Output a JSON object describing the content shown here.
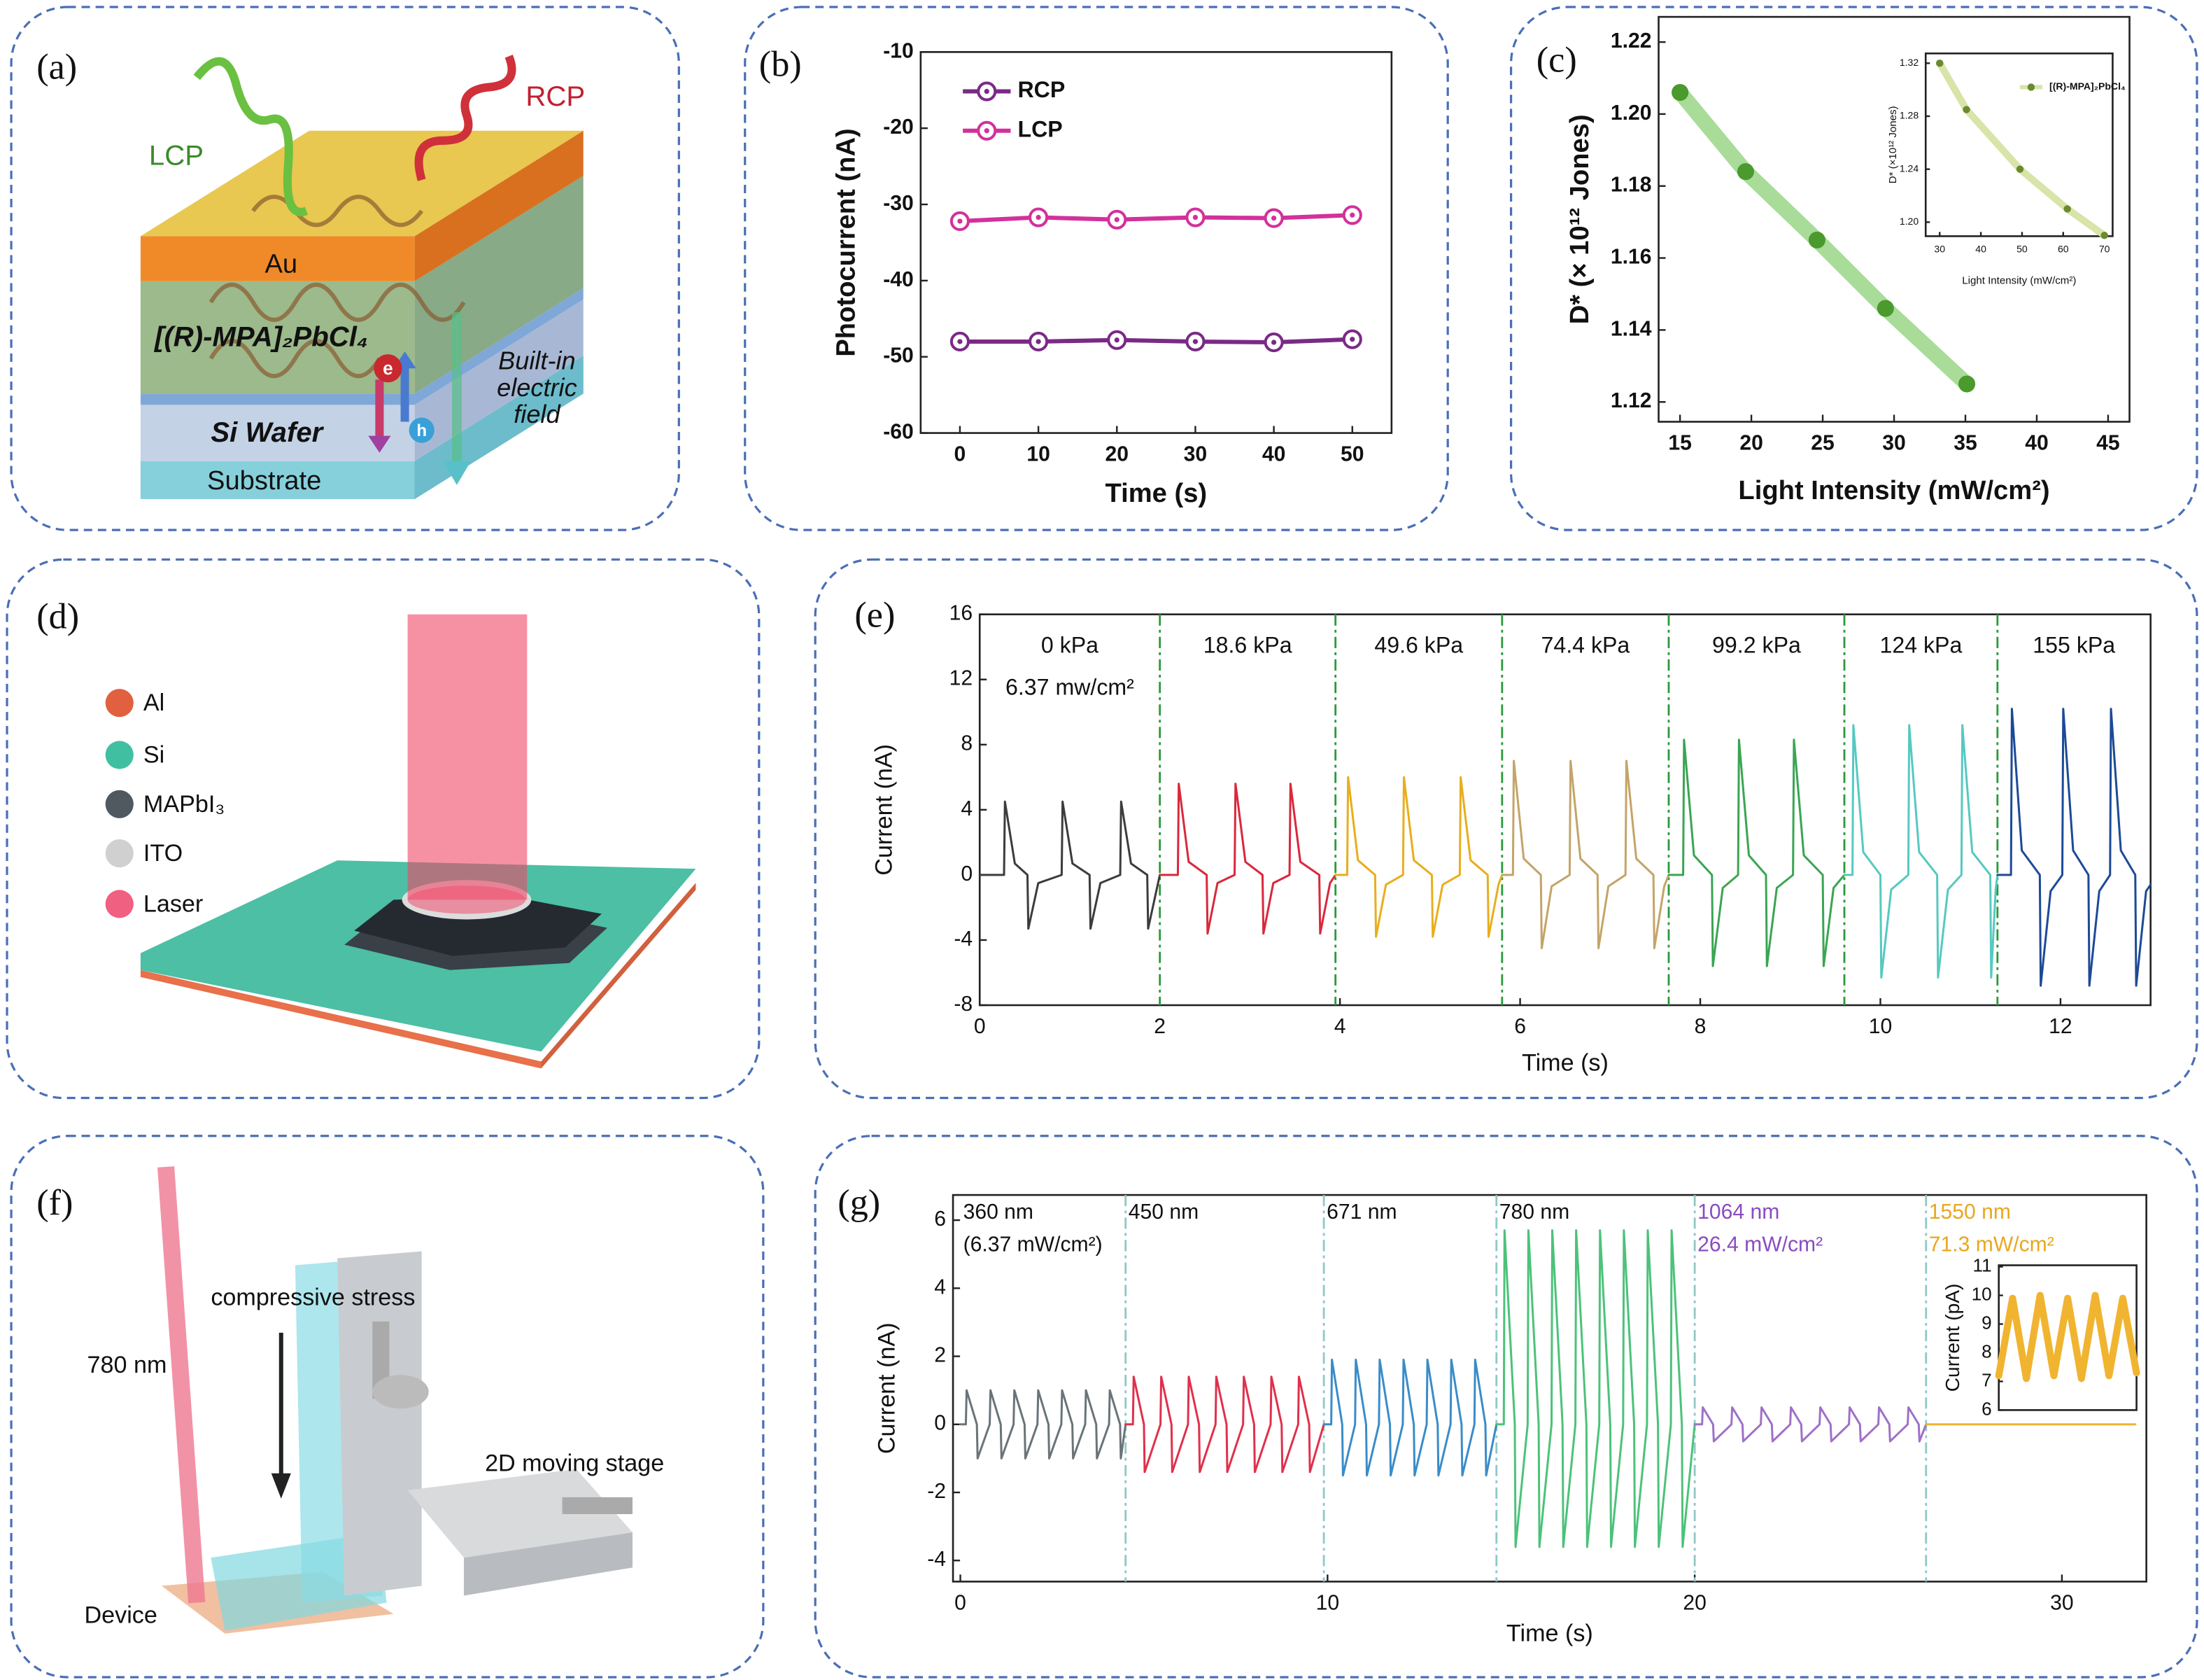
{
  "chart_data": [
    {
      "type": "line",
      "panel_label": "(b)",
      "xlabel": "Time (s)",
      "ylabel": "Photocurrent (nA)",
      "x": [
        0,
        10,
        20,
        30,
        40,
        50
      ],
      "xlim": [
        -5,
        55
      ],
      "xticks": [
        0,
        10,
        20,
        30,
        40,
        50
      ],
      "ylim": [
        -60,
        -10
      ],
      "yticks": [
        -10,
        -20,
        -30,
        -40,
        -50,
        -60
      ],
      "marker": "open-circle",
      "legend": "upper left",
      "series": [
        {
          "name": "RCP",
          "color": "#7a2a86",
          "values": [
            -48,
            -48,
            -47.8,
            -48,
            -48.1,
            -47.7
          ]
        },
        {
          "name": "LCP",
          "color": "#d2319b",
          "values": [
            -32.2,
            -31.7,
            -32,
            -31.7,
            -31.8,
            -31.4
          ]
        }
      ]
    },
    {
      "type": "line",
      "panel_label": "(c)",
      "xlabel": "Light Intensity (mW/cm²)",
      "ylabel": "D* (× 10¹² Jones)",
      "x": [
        15,
        19.6,
        24.6,
        29.4,
        35.1
      ],
      "xlim": [
        13.5,
        46.5
      ],
      "xticks": [
        15,
        20,
        25,
        30,
        35,
        40,
        45
      ],
      "ylim": [
        1.1145,
        1.227
      ],
      "yticks": [
        1.12,
        1.14,
        1.16,
        1.18,
        {
          "value": 1.2,
          "label": "1.20"
        },
        1.22
      ],
      "marker": "dot",
      "series": [
        {
          "color": "#4a9a2e",
          "band_color": "#a8dc98",
          "values": [
            1.206,
            1.184,
            1.165,
            1.146,
            1.125
          ]
        }
      ]
    },
    {
      "type": "line",
      "xlabel": "Light Intensity (mW/cm²)",
      "ylabel": "D* (×10¹² Jones)",
      "x": [
        30,
        36.5,
        49.5,
        61,
        70
      ],
      "xlim": [
        26.6,
        72
      ],
      "xticks": [
        30,
        40,
        50,
        60,
        70
      ],
      "ylim": [
        1.1894,
        1.3274
      ],
      "yticks": [
        {
          "value": 1.2,
          "label": "1.20"
        },
        1.24,
        1.28,
        1.32
      ],
      "marker": "dot",
      "legend": "upper right",
      "series": [
        {
          "name": "[(R)-MPA]₂PbCl₄",
          "color": "#6a8a2e",
          "band_color": "#d8e4a8",
          "values": [
            1.32,
            1.285,
            1.24,
            1.21,
            1.19
          ]
        }
      ]
    },
    {
      "type": "line",
      "panel_label": "(e)",
      "xlabel": "Time (s)",
      "ylabel": "Current (nA)",
      "xlim": [
        0,
        13
      ],
      "xticks": [
        0,
        2,
        4,
        6,
        8,
        10,
        12
      ],
      "ylim": [
        -8,
        16
      ],
      "yticks": [
        -8,
        -4,
        0,
        4,
        8,
        12,
        16
      ],
      "dividers": [
        2.0,
        3.95,
        5.8,
        7.65,
        9.6,
        11.3
      ],
      "divider_color": "#2a9a3a",
      "segment_labels": "middle",
      "series": [
        {
          "name": "0 kPa",
          "annotation": "6.37 mw/cm²",
          "color": "#3c3c3c",
          "x": [
            0,
            0.27,
            0.28,
            0.39,
            0.53,
            0.54,
            0.65,
            0.91,
            0.92,
            1.03,
            1.22,
            1.23,
            1.34,
            1.56,
            1.57,
            1.68,
            1.86,
            1.87,
            1.98,
            2.0
          ],
          "values": [
            0,
            0,
            4.5,
            0.7,
            0,
            -3.3,
            -0.5,
            0,
            4.5,
            0.7,
            0,
            -3.3,
            -0.5,
            0,
            4.5,
            0.7,
            0,
            -3.3,
            -0.5,
            0
          ]
        },
        {
          "name": "18.6 kPa",
          "color": "#d9283c",
          "x": [
            2.0,
            2.2,
            2.21,
            2.32,
            2.52,
            2.53,
            2.64,
            2.83,
            2.84,
            2.95,
            3.14,
            3.15,
            3.26,
            3.44,
            3.45,
            3.56,
            3.77,
            3.78,
            3.89,
            3.95
          ],
          "values": [
            0,
            0,
            5.6,
            0.8,
            0,
            -3.6,
            -0.5,
            0,
            5.6,
            0.8,
            0,
            -3.6,
            -0.5,
            0,
            5.6,
            0.8,
            0,
            -3.6,
            -0.5,
            0
          ]
        },
        {
          "name": "49.6 kPa",
          "color": "#e8ae1c",
          "x": [
            3.95,
            4.08,
            4.09,
            4.2,
            4.39,
            4.4,
            4.51,
            4.7,
            4.71,
            4.82,
            5.02,
            5.03,
            5.14,
            5.33,
            5.34,
            5.45,
            5.64,
            5.65,
            5.76,
            5.8
          ],
          "values": [
            0,
            0,
            6,
            0.9,
            0,
            -3.8,
            -0.6,
            0,
            6,
            0.9,
            0,
            -3.8,
            -0.6,
            0,
            6,
            0.9,
            0,
            -3.8,
            -0.6,
            0
          ]
        },
        {
          "name": "74.4 kPa",
          "color": "#c4a468",
          "x": [
            5.8,
            5.92,
            5.93,
            6.04,
            6.23,
            6.24,
            6.35,
            6.55,
            6.56,
            6.67,
            6.86,
            6.87,
            6.98,
            7.17,
            7.18,
            7.29,
            7.48,
            7.49,
            7.6,
            7.65
          ],
          "values": [
            0,
            0,
            7,
            1.0,
            0,
            -4.5,
            -0.7,
            0,
            7,
            1.0,
            0,
            -4.5,
            -0.7,
            0,
            7,
            1.0,
            0,
            -4.5,
            -0.7,
            0
          ]
        },
        {
          "name": "99.2 kPa",
          "color": "#3aa552",
          "x": [
            7.65,
            7.81,
            7.82,
            7.93,
            8.13,
            8.14,
            8.25,
            8.42,
            8.43,
            8.54,
            8.73,
            8.74,
            8.85,
            9.03,
            9.04,
            9.15,
            9.36,
            9.37,
            9.48,
            9.6
          ],
          "values": [
            0,
            0,
            8.3,
            1.2,
            0,
            -5.6,
            -0.8,
            0,
            8.3,
            1.2,
            0,
            -5.6,
            -0.8,
            0,
            8.3,
            1.2,
            0,
            -5.6,
            -0.8,
            0
          ]
        },
        {
          "name": "124 kPa",
          "color": "#56c9c0",
          "x": [
            9.6,
            9.69,
            9.7,
            9.81,
            10.0,
            10.01,
            10.12,
            10.31,
            10.32,
            10.43,
            10.63,
            10.64,
            10.75,
            10.9,
            10.91,
            11.02,
            11.22,
            11.23,
            11.28,
            11.3
          ],
          "values": [
            0,
            0,
            9.2,
            1.4,
            0,
            -6.3,
            -0.9,
            0,
            9.2,
            1.4,
            0,
            -6.3,
            -0.9,
            0,
            9.2,
            1.4,
            0,
            -6.3,
            -0.9,
            0
          ]
        },
        {
          "name": "155 kPa",
          "color": "#1d4a96",
          "x": [
            11.3,
            11.45,
            11.46,
            11.57,
            11.77,
            11.78,
            11.89,
            12.02,
            12.03,
            12.14,
            12.31,
            12.32,
            12.43,
            12.55,
            12.56,
            12.67,
            12.83,
            12.84,
            12.95,
            13
          ],
          "values": [
            0,
            0,
            10.2,
            1.5,
            0,
            -6.8,
            -1.0,
            0,
            10.2,
            1.5,
            0,
            -6.8,
            -1.0,
            0,
            10.2,
            1.5,
            0,
            -6.8,
            -1.0,
            -0.6
          ]
        }
      ]
    },
    {
      "type": "line",
      "panel_label": "(g)",
      "xlabel": "Time (s)",
      "ylabel": "Current (nA)",
      "xlim": [
        -0.2,
        32.3
      ],
      "xticks": [
        0,
        10,
        20,
        30
      ],
      "ylim": [
        -4.62,
        6.74
      ],
      "yticks": [
        -4,
        -2,
        0,
        2,
        4,
        6
      ],
      "dividers": [
        4.5,
        9.9,
        14.6,
        20,
        26.3
      ],
      "divider_color": "#8fc8c8",
      "segment_labels": "start",
      "series": [
        {
          "name": "360 nm",
          "annotation": "(6.37 mW/cm²)",
          "color": "#6a7478",
          "x": [
            0,
            0.15,
            0.17,
            0.45,
            0.47,
            0.8,
            0.82,
            1.1,
            1.12,
            1.45,
            1.47,
            1.75,
            1.77,
            2.1,
            2.12,
            2.4,
            2.42,
            2.75,
            2.77,
            3.05,
            3.07,
            3.4,
            3.42,
            3.7,
            3.72,
            4.05,
            4.07,
            4.35,
            4.37,
            4.5
          ],
          "values": [
            0,
            0,
            1,
            0,
            -1,
            0,
            1,
            0,
            -1,
            0,
            1,
            0,
            -1,
            0,
            1,
            0,
            -1,
            0,
            1,
            0,
            -1,
            0,
            1,
            0,
            -1,
            0,
            1,
            0,
            -1,
            0
          ]
        },
        {
          "name": "450 nm",
          "color": "#e0304c",
          "x": [
            4.5,
            4.7,
            4.72,
            5.0,
            5.02,
            5.45,
            5.47,
            5.75,
            5.77,
            6.2,
            6.22,
            6.5,
            6.52,
            6.95,
            6.97,
            7.25,
            7.27,
            7.7,
            7.72,
            8.0,
            8.02,
            8.45,
            8.47,
            8.75,
            8.77,
            9.2,
            9.22,
            9.5,
            9.52,
            9.9
          ],
          "values": [
            0,
            0,
            1.4,
            0,
            -1.4,
            0,
            1.4,
            0,
            -1.4,
            0,
            1.4,
            0,
            -1.4,
            0,
            1.4,
            0,
            -1.4,
            0,
            1.4,
            0,
            -1.4,
            0,
            1.4,
            0,
            -1.4,
            0,
            1.4,
            0,
            -1.4,
            0
          ]
        },
        {
          "name": "671 nm",
          "color": "#3a8cc8",
          "x": [
            9.9,
            10.1,
            10.12,
            10.4,
            10.42,
            10.75,
            10.77,
            11.05,
            11.07,
            11.4,
            11.42,
            11.7,
            11.72,
            12.05,
            12.07,
            12.35,
            12.37,
            12.7,
            12.72,
            13.0,
            13.02,
            13.35,
            13.37,
            13.65,
            13.67,
            14.0,
            14.02,
            14.3,
            14.32,
            14.6
          ],
          "values": [
            0,
            0,
            1.9,
            0,
            -1.5,
            0,
            1.9,
            0,
            -1.5,
            0,
            1.9,
            0,
            -1.5,
            0,
            1.9,
            0,
            -1.5,
            0,
            1.9,
            0,
            -1.5,
            0,
            1.9,
            0,
            -1.5,
            0,
            1.9,
            0,
            -1.5,
            0
          ]
        },
        {
          "name": "780 nm",
          "color": "#4cc27a",
          "x": [
            14.6,
            14.8,
            14.82,
            15.1,
            15.12,
            15.45,
            15.47,
            15.75,
            15.77,
            16.1,
            16.12,
            16.4,
            16.42,
            16.75,
            16.77,
            17.05,
            17.07,
            17.4,
            17.42,
            17.7,
            17.72,
            18.05,
            18.07,
            18.35,
            18.37,
            18.7,
            18.72,
            19.0,
            19.02,
            19.35,
            19.37,
            19.65,
            19.67,
            20
          ],
          "values": [
            0,
            0,
            5.7,
            0,
            -3.6,
            0,
            5.7,
            0,
            -3.6,
            0,
            5.7,
            0,
            -3.6,
            0,
            5.7,
            0,
            -3.6,
            0,
            5.7,
            0,
            -3.6,
            0,
            5.7,
            0,
            -3.6,
            0,
            5.7,
            0,
            -3.6,
            0,
            5.7,
            0,
            -3.6,
            0
          ]
        },
        {
          "name": "1064 nm",
          "annotation": "26.4 mW/cm²",
          "color": "#a070c8",
          "label_color": "#8a4cc0",
          "x": [
            20,
            20.2,
            20.22,
            20.5,
            20.52,
            21.0,
            21.02,
            21.3,
            21.32,
            21.8,
            21.82,
            22.1,
            22.12,
            22.6,
            22.62,
            22.9,
            22.92,
            23.4,
            23.42,
            23.7,
            23.72,
            24.2,
            24.22,
            24.5,
            24.52,
            25.0,
            25.02,
            25.3,
            25.32,
            25.8,
            25.82,
            26.1,
            26.12,
            26.3
          ],
          "values": [
            0,
            0,
            0.5,
            0,
            -0.5,
            0,
            0.5,
            0,
            -0.5,
            0,
            0.5,
            0,
            -0.5,
            0,
            0.5,
            0,
            -0.5,
            0,
            0.5,
            0,
            -0.5,
            0,
            0.5,
            0,
            -0.5,
            0,
            0.5,
            0,
            -0.5,
            0,
            0.5,
            0,
            -0.5,
            0
          ]
        },
        {
          "name": "1550 nm",
          "annotation": "71.3 mW/cm²",
          "color": "#f0b430",
          "label_color": "#e8a820",
          "x": [
            26.3,
            32
          ],
          "values": [
            0,
            0
          ]
        }
      ]
    },
    {
      "type": "line",
      "ylabel": "Current (pA)",
      "xlim": [
        0,
        10
      ],
      "ylim": [
        6,
        11.05
      ],
      "yticks": [
        6,
        7,
        8,
        9,
        10,
        11
      ],
      "series": [
        {
          "color": "#f0b430",
          "x": [
            0,
            1,
            2,
            3,
            4,
            5,
            6,
            7,
            8,
            9,
            10
          ],
          "values": [
            7.2,
            9.9,
            7.1,
            10,
            7.2,
            9.9,
            7.1,
            10,
            7.2,
            9.9,
            7.3
          ]
        }
      ]
    }
  ],
  "diagrams": {
    "a": {
      "label": "(a)",
      "lcp": "LCP",
      "rcp": "RCP",
      "au": "Au",
      "perovskite": "[(R)-MPA]₂PbCl₄",
      "electron": "e",
      "hole": "h",
      "field": [
        "Built-in",
        "electric",
        "field"
      ],
      "wafer": "Si Wafer",
      "substrate": "Substrate"
    },
    "d": {
      "label": "(d)",
      "legend": [
        "Al",
        "Si",
        "MAPbI₃",
        "ITO",
        "Laser"
      ]
    },
    "f": {
      "label": "(f)",
      "wavelength": "780 nm",
      "stress": "compressive stress",
      "stage": "2D moving stage",
      "device": "Device"
    }
  }
}
